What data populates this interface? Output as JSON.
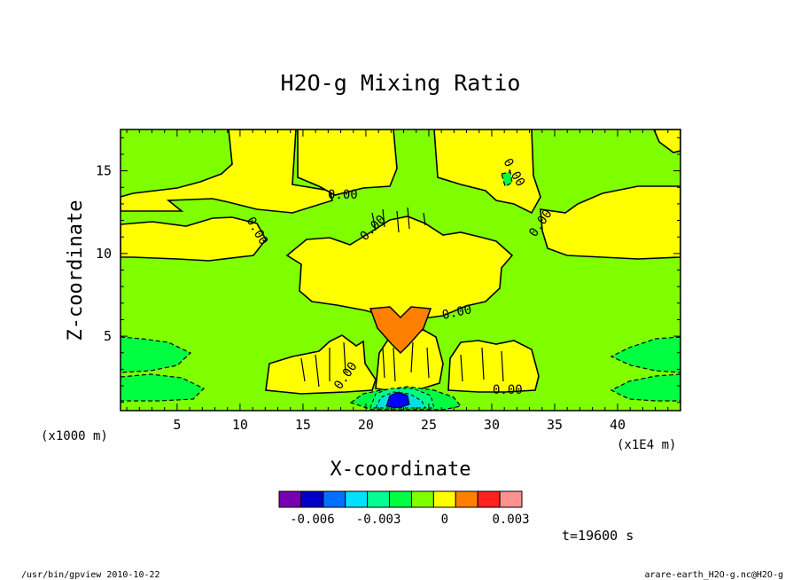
{
  "chart_data": {
    "type": "heatmap",
    "title": "H2O-g Mixing Ratio",
    "xlabel": "X-coordinate",
    "ylabel": "Z-coordinate",
    "x_unit": "(x1E4 m)",
    "z_unit": "(x1000 m)",
    "x_ticks": [
      5,
      10,
      15,
      20,
      25,
      30,
      35,
      40
    ],
    "y_ticks": [
      5,
      10,
      15
    ],
    "xlim": [
      0.5,
      45
    ],
    "ylim": [
      0.5,
      17.5
    ],
    "contour_labels": [
      "0.00",
      "0.00",
      "0.00",
      "0.00",
      "0.00",
      "0.00",
      "0.00",
      "0.00"
    ],
    "color_levels": [
      "#7700b0",
      "#0000c8",
      "#0070ff",
      "#00e0ff",
      "#00ff90",
      "#00ff40",
      "#80ff00",
      "#ffff00",
      "#ff8000",
      "#ff2020",
      "#ff9090"
    ],
    "color_bar_ticks": [
      -0.006,
      -0.003,
      0,
      0.003
    ],
    "color_bar_tick_labels": [
      "-0.006",
      "-0.003",
      "0",
      "0.003"
    ],
    "color_bar_range": [
      -0.0075,
      0.0035
    ],
    "time_label": "t=19600 s"
  },
  "footer": {
    "left": "/usr/bin/gpview  2010-10-22",
    "right": "arare-earth_H2O-g.nc@H2O-g"
  }
}
